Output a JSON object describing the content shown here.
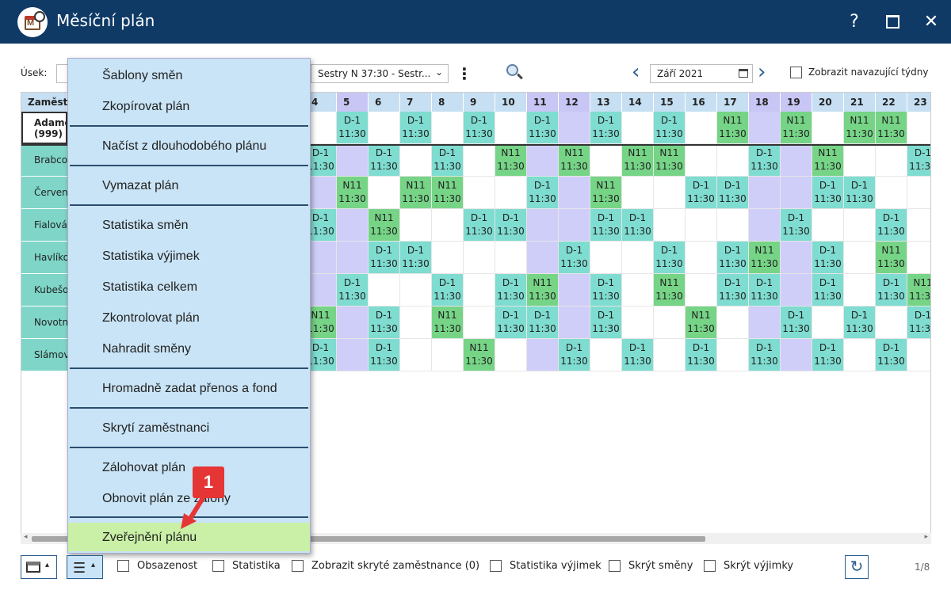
{
  "window": {
    "title": "Měsíční plán",
    "help": "?",
    "close": "✕"
  },
  "toolbar": {
    "usek_label": "Úsek:",
    "group_value": "Sestry N 37:30 - Sestr...",
    "month_value": "Září 2021",
    "show_following_weeks": "Zobrazit navazující týdny"
  },
  "grid": {
    "employee_header": "Zaměst",
    "days": [
      {
        "d": "4",
        "we": false
      },
      {
        "d": "5",
        "we": true
      },
      {
        "d": "6",
        "we": false
      },
      {
        "d": "7",
        "we": false
      },
      {
        "d": "8",
        "we": false
      },
      {
        "d": "9",
        "we": false
      },
      {
        "d": "10",
        "we": false
      },
      {
        "d": "11",
        "we": true
      },
      {
        "d": "12",
        "we": true
      },
      {
        "d": "13",
        "we": false
      },
      {
        "d": "14",
        "we": false
      },
      {
        "d": "15",
        "we": false
      },
      {
        "d": "16",
        "we": false
      },
      {
        "d": "17",
        "we": false
      },
      {
        "d": "18",
        "we": true
      },
      {
        "d": "19",
        "we": true
      },
      {
        "d": "20",
        "we": false
      },
      {
        "d": "21",
        "we": false
      },
      {
        "d": "22",
        "we": false
      },
      {
        "d": "23",
        "we": false
      }
    ],
    "employees": [
      {
        "name": "Adamc",
        "sub": "(999)",
        "shifts": [
          "",
          "D",
          "",
          "D",
          "",
          "D",
          "",
          "D",
          "W",
          "D",
          "",
          "D",
          "",
          "N",
          "W",
          "N",
          "",
          "N",
          "N",
          ""
        ]
      },
      {
        "name": "Brabco",
        "sub": "",
        "shifts": [
          "D",
          "W",
          "D",
          "",
          "D",
          "",
          "N",
          "W",
          "N",
          "",
          "N",
          "N",
          "",
          "",
          "D",
          "W",
          "N",
          "",
          "",
          "D"
        ]
      },
      {
        "name": "Červen",
        "sub": "",
        "shifts": [
          "W",
          "N",
          "",
          "N",
          "N",
          "",
          "",
          "D",
          "W",
          "N",
          "",
          "",
          "D",
          "D",
          "W",
          "W",
          "D",
          "D",
          "",
          ""
        ]
      },
      {
        "name": "Fialová",
        "sub": "",
        "shifts": [
          "D",
          "W",
          "N",
          "",
          "",
          "D",
          "D",
          "W",
          "W",
          "D",
          "D",
          "",
          "",
          "",
          "W",
          "D",
          "",
          "",
          "D",
          ""
        ]
      },
      {
        "name": "Havlíko",
        "sub": "",
        "shifts": [
          "W",
          "W",
          "D",
          "D",
          "",
          "",
          "",
          "W",
          "D",
          "",
          "",
          "D",
          "",
          "D",
          "N",
          "W",
          "D",
          "",
          "N",
          ""
        ]
      },
      {
        "name": "Kubešo",
        "sub": "",
        "shifts": [
          "W",
          "D",
          "",
          "",
          "D",
          "",
          "D",
          "N",
          "W",
          "D",
          "",
          "N",
          "",
          "D",
          "D",
          "W",
          "D",
          "",
          "D",
          "N"
        ]
      },
      {
        "name": "Novotn",
        "sub": "",
        "shifts": [
          "N",
          "W",
          "D",
          "",
          "N",
          "",
          "D",
          "D",
          "W",
          "D",
          "",
          "",
          "N",
          "",
          "W",
          "D",
          "",
          "D",
          "",
          "D"
        ]
      },
      {
        "name": "Slámov",
        "sub": "",
        "shifts": [
          "D",
          "W",
          "D",
          "",
          "",
          "N",
          "",
          "W",
          "D",
          "",
          "D",
          "",
          "D",
          "",
          "D",
          "W",
          "D",
          "",
          "D",
          ""
        ]
      }
    ],
    "shift_types": {
      "D": {
        "code": "D-1",
        "time": "11:30",
        "color": "#7fdcd0"
      },
      "N": {
        "code": "N11",
        "time": "11:30",
        "color": "#76d486"
      }
    }
  },
  "menu": {
    "items": [
      "Šablony směn",
      "Zkopírovat plán",
      "Načíst z dlouhodobého plánu",
      "Vymazat plán",
      "Statistika směn",
      "Statistika výjimek",
      "Statistika celkem",
      "Zkontrolovat plán",
      "Nahradit směny",
      "Hromadně zadat přenos a fond",
      "Skrytí zaměstnanci",
      "Zálohovat plán",
      "Obnovit plán ze zálohy",
      "Zveřejnění plánu"
    ],
    "highlighted": "Zveřejnění plánu"
  },
  "annotation": {
    "badge": "1"
  },
  "bottombar": {
    "obsazenost": "Obsazenost",
    "statistika": "Statistika",
    "zobrazit_skryte": "Zobrazit skryté zaměstnance (0)",
    "statistika_vyjimek": "Statistika výjimek",
    "skryt_smeny": "Skrýt směny",
    "skryt_vyjimky": "Skrýt výjimky",
    "page_indicator": "1/8"
  }
}
